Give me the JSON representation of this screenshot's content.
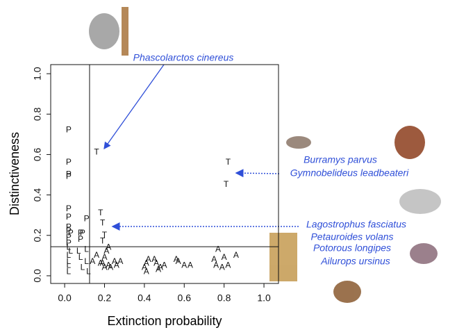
{
  "chart_data": {
    "type": "scatter",
    "xlabel": "Extinction probability",
    "ylabel": "Distinctiveness",
    "xlim": [
      -0.07,
      1.073
    ],
    "ylim": [
      -0.038,
      1.045
    ],
    "xticks": [
      {
        "value": 0,
        "label": "0.0"
      },
      {
        "value": 0.2,
        "label": "0.2"
      },
      {
        "value": 0.4,
        "label": "0.4"
      },
      {
        "value": 0.6,
        "label": "0.6"
      },
      {
        "value": 0.8,
        "label": "0.8"
      },
      {
        "value": 1,
        "label": "1.0"
      }
    ],
    "yticks": [
      {
        "value": 0,
        "label": "0.0"
      },
      {
        "value": 0.2,
        "label": "0.2"
      },
      {
        "value": 0.4,
        "label": "0.4"
      },
      {
        "value": 0.6,
        "label": "0.6"
      },
      {
        "value": 0.8,
        "label": "0.8"
      },
      {
        "value": 1,
        "label": "1.0"
      }
    ],
    "thresholds": {
      "x": 0.125,
      "y": 0.144
    },
    "series": [
      {
        "name": "P",
        "color": "#111",
        "x": [
          0.02,
          0.02,
          0.02,
          0.02,
          0.02,
          0.02,
          0.02,
          0.02,
          0.03,
          0.08,
          0.09,
          0.02,
          0.08,
          0.11,
          0.02
        ],
        "values": [
          0.72,
          0.56,
          0.5,
          0.49,
          0.33,
          0.29,
          0.24,
          0.22,
          0.21,
          0.21,
          0.21,
          0.19,
          0.18,
          0.28,
          0.16
        ]
      },
      {
        "name": "T",
        "color": "#111",
        "x": [
          0.16,
          0.82,
          0.81,
          0.18,
          0.19,
          0.2,
          0.19
        ],
        "values": [
          0.61,
          0.56,
          0.45,
          0.31,
          0.26,
          0.2,
          0.17
        ]
      },
      {
        "name": "A",
        "color": "#111",
        "x": [
          0.22,
          0.21,
          0.2,
          0.25,
          0.28,
          0.19,
          0.22,
          0.26,
          0.23,
          0.2,
          0.42,
          0.45,
          0.41,
          0.46,
          0.4,
          0.48,
          0.5,
          0.41,
          0.47,
          0.56,
          0.57,
          0.6,
          0.63,
          0.77,
          0.75,
          0.8,
          0.76,
          0.79,
          0.82,
          0.86,
          0.16,
          0.14,
          0.18
        ],
        "values": [
          0.14,
          0.12,
          0.09,
          0.07,
          0.07,
          0.06,
          0.05,
          0.05,
          0.04,
          0.04,
          0.08,
          0.08,
          0.06,
          0.06,
          0.04,
          0.04,
          0.05,
          0.02,
          0.03,
          0.08,
          0.07,
          0.05,
          0.05,
          0.13,
          0.08,
          0.09,
          0.05,
          0.04,
          0.05,
          0.1,
          0.1,
          0.07,
          0.06
        ]
      },
      {
        "name": "L",
        "color": "#111",
        "x": [
          0.02,
          0.03,
          0.07,
          0.11,
          0.02,
          0.08,
          0.11,
          0.02,
          0.09,
          0.02,
          0.12,
          0.02
        ],
        "values": [
          0.14,
          0.12,
          0.12,
          0.13,
          0.1,
          0.09,
          0.07,
          0.07,
          0.04,
          0.05,
          0.02,
          0.02
        ]
      }
    ],
    "annotations": [
      "Phascolarctos cinereus",
      "Burramys parvus",
      "Gymnobelideus leadbeateri",
      "Lagostrophus fasciatus",
      "Petauroides volans",
      "Potorous longipes",
      "Ailurops ursinus"
    ]
  }
}
